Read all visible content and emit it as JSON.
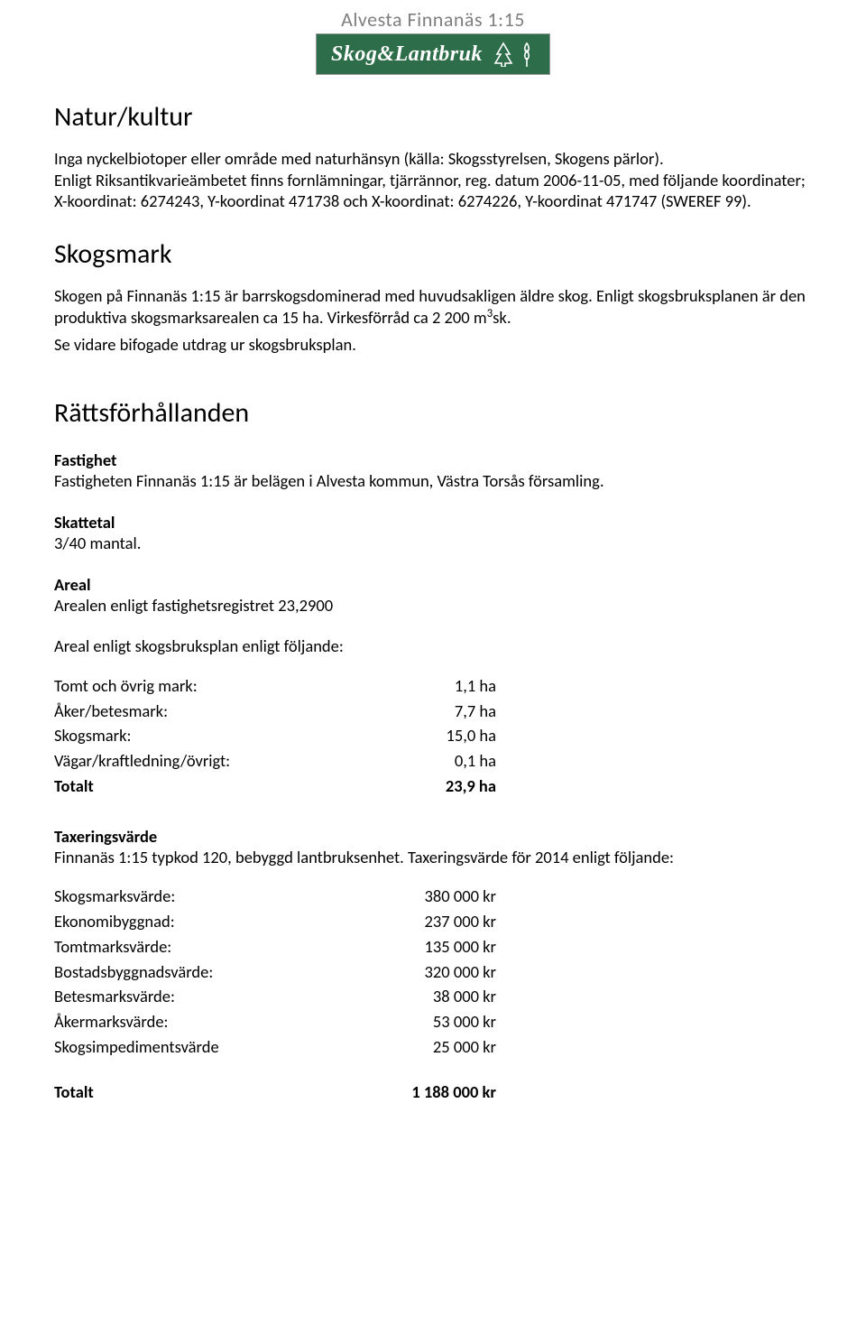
{
  "header": {
    "title": "Alvesta Finnanäs 1:15",
    "logo_text": "Skog&Lantbruk",
    "title_color": "#7f7f7f",
    "logo_bg": "#2e6d4a",
    "logo_color": "#ffffff"
  },
  "sections": {
    "natur": {
      "heading": "Natur/kultur",
      "p1": "Inga nyckelbiotoper eller område med naturhänsyn (källa: Skogsstyrelsen, Skogens pärlor).",
      "p2": "Enligt Riksantikvarieämbetet finns fornlämningar, tjärrännor, reg. datum 2006-11-05, med följande koordinater; X-koordinat: 6274243, Y-koordinat 471738 och  X-koordinat: 6274226, Y-koordinat 471747 (SWEREF 99)."
    },
    "skogsmark": {
      "heading": "Skogsmark",
      "p1_pre": "Skogen på Finnanäs 1:15 är barrskogsdominerad med huvudsakligen äldre skog. Enligt skogsbruksplanen är den produktiva skogsmarksarealen ca 15 ha. Virkesförråd ca 2 200 m",
      "p1_sup": "3",
      "p1_post": "sk.",
      "p2": "Se vidare bifogade utdrag ur skogsbruksplan."
    },
    "ratts": {
      "heading": "Rättsförhållanden",
      "fastighet_h": "Fastighet",
      "fastighet_t": "Fastigheten  Finnanäs 1:15 är belägen i Alvesta kommun, Västra Torsås församling.",
      "skattetal_h": "Skattetal",
      "skattetal_t": "3/40 mantal.",
      "areal_h": "Areal",
      "areal_t": "Arealen enligt fastighetsregistret 23,2900",
      "areal_plan_intro": "Areal enligt skogsbruksplan enligt följande:",
      "areal_rows": [
        {
          "label": "Tomt och övrig mark:",
          "value": "1,1 ha",
          "bold": false
        },
        {
          "label": "Åker/betesmark:",
          "value": "7,7 ha",
          "bold": false
        },
        {
          "label": "Skogsmark:",
          "value": "15,0 ha",
          "bold": false
        },
        {
          "label": "Vägar/kraftledning/övrigt:",
          "value": "0,1 ha",
          "bold": false
        },
        {
          "label": "Totalt",
          "value": "23,9 ha",
          "bold": true
        }
      ],
      "tax_h": "Taxeringsvärde",
      "tax_t": "Finnanäs 1:15 typkod 120, bebyggd lantbruksenhet. Taxeringsvärde för 2014 enligt följande:",
      "tax_rows": [
        {
          "label": "Skogsmarksvärde:",
          "value": "380 000 kr",
          "bold": false
        },
        {
          "label": "Ekonomibyggnad:",
          "value": "237 000 kr",
          "bold": false
        },
        {
          "label": "Tomtmarksvärde:",
          "value": "135 000 kr",
          "bold": false
        },
        {
          "label": "Bostadsbyggnadsvärde:",
          "value": "320 000 kr",
          "bold": false
        },
        {
          "label": "Betesmarksvärde:",
          "value": "38 000 kr",
          "bold": false
        },
        {
          "label": "Åkermarksvärde:",
          "value": "53 000 kr",
          "bold": false
        },
        {
          "label": "Skogsimpedimentsvärde",
          "value": "25 000 kr",
          "bold": false
        }
      ],
      "tax_total_label": "Totalt",
      "tax_total_value": "1 188 000 kr"
    }
  }
}
